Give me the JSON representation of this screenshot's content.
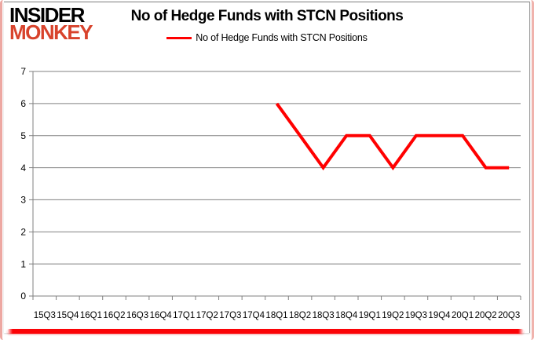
{
  "logo": {
    "line1": "INSIDER",
    "line2": "MONKEY"
  },
  "title": "No of Hedge Funds with STCN Positions",
  "legend": {
    "label": "No of Hedge Funds with STCN Positions"
  },
  "chart_data": {
    "type": "line",
    "title": "No of Hedge Funds with STCN Positions",
    "categories": [
      "15Q3",
      "15Q4",
      "16Q1",
      "16Q2",
      "16Q3",
      "16Q4",
      "17Q1",
      "17Q2",
      "17Q3",
      "17Q4",
      "18Q1",
      "18Q2",
      "18Q3",
      "18Q4",
      "19Q1",
      "19Q2",
      "19Q3",
      "19Q4",
      "20Q1",
      "20Q2",
      "20Q3"
    ],
    "series": [
      {
        "name": "No of Hedge Funds with STCN Positions",
        "color": "#ff0000",
        "values": [
          null,
          null,
          null,
          null,
          null,
          null,
          null,
          null,
          null,
          null,
          6,
          5,
          4,
          5,
          5,
          4,
          5,
          5,
          5,
          4,
          4
        ]
      }
    ],
    "ylim": [
      0,
      7
    ],
    "ytick_step": 1,
    "grid": true,
    "legend_position": "top"
  },
  "colors": {
    "line": "#ff0000",
    "grid": "#808080",
    "axis": "#808080",
    "text": "#000000",
    "logo_red": "#d8432c",
    "border_pink": "#eda8a2",
    "bottom_bar": "#fb0307"
  }
}
